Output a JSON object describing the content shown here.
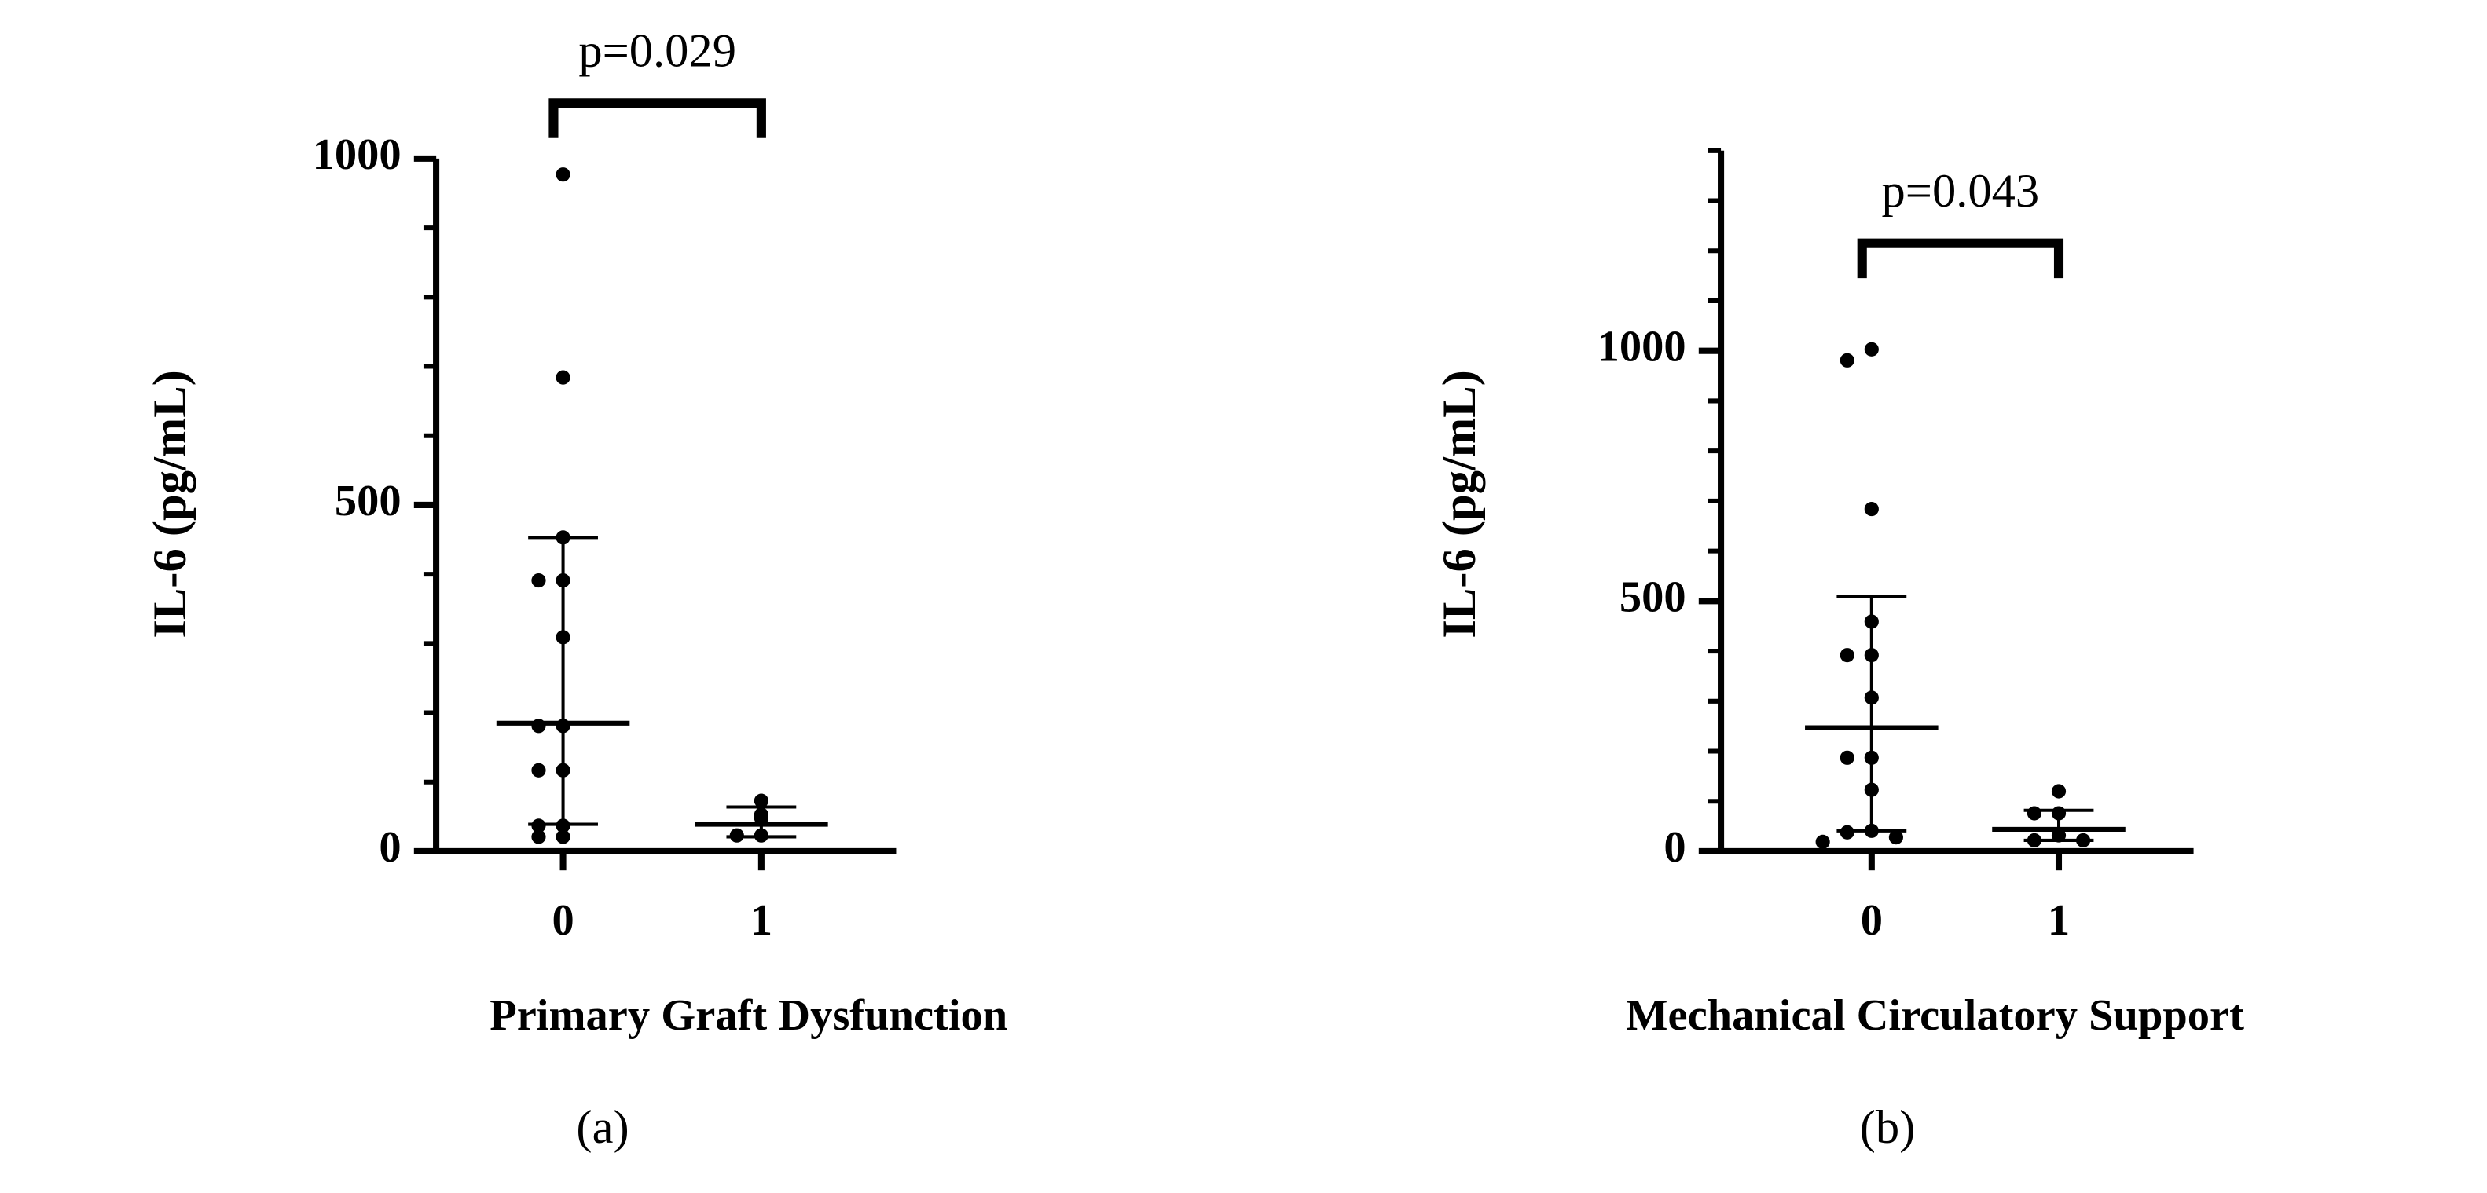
{
  "chart_data": [
    {
      "type": "dot",
      "y_label": "IL-6 (pg/mL)",
      "x_label": "Primary Graft Dysfunction",
      "caption": "(a)",
      "categories": [
        "0",
        "1"
      ],
      "points": [
        [
          977,
          684,
          453,
          391,
          391,
          309,
          181,
          181,
          117,
          117,
          37,
          37,
          21,
          21
        ],
        [
          73,
          53,
          48,
          23,
          23
        ]
      ],
      "median": [
        185,
        39
      ],
      "error_low": [
        39,
        21
      ],
      "error_high": [
        453,
        64
      ],
      "ylim": [
        0,
        1000
      ],
      "yticks": [
        0,
        500,
        1000
      ],
      "minor_yticks": [
        0,
        100,
        200,
        300,
        400,
        500,
        600,
        700,
        800,
        900,
        1000
      ],
      "color": "#000000",
      "annotation": {
        "text": "p=0.029",
        "y": 1080
      }
    },
    {
      "type": "dot",
      "y_label": "IL-6 (pg/mL)",
      "x_label": "Mechanical Circulatory Support",
      "caption": "(b)",
      "categories": [
        "0",
        "1"
      ],
      "points": [
        [
          1003,
          981,
          684,
          459,
          392,
          392,
          307,
          187,
          187,
          123,
          41,
          38,
          28,
          19
        ],
        [
          120,
          76,
          76,
          32,
          22,
          22
        ]
      ],
      "median": [
        247,
        44
      ],
      "error_low": [
        41,
        22
      ],
      "error_high": [
        509,
        82
      ],
      "ylim": [
        0,
        1400
      ],
      "yticks": [
        0,
        500,
        1000
      ],
      "minor_yticks": [
        0,
        100,
        200,
        300,
        400,
        500,
        600,
        700,
        800,
        900,
        1000,
        1100,
        1200,
        1300,
        1400
      ],
      "color": "#000000",
      "annotation": {
        "text": "p=0.043",
        "y": 1215
      }
    }
  ]
}
